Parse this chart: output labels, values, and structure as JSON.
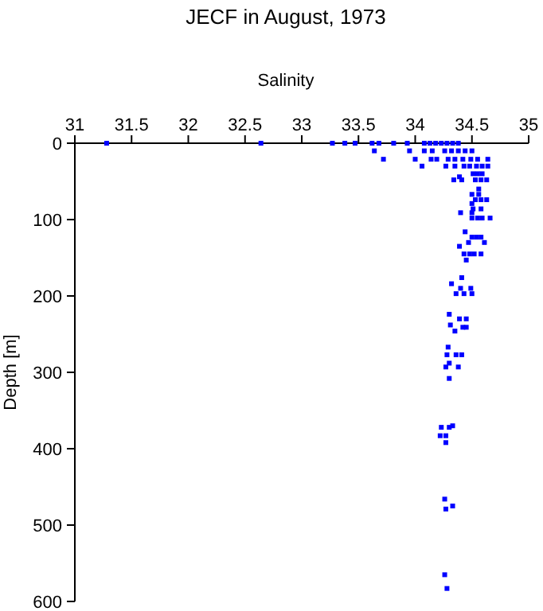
{
  "chart_data": {
    "type": "scatter",
    "title": "JECF in August, 1973",
    "xlabel": "Salinity",
    "ylabel": "Depth [m]",
    "xlim": [
      31,
      35
    ],
    "xticks": [
      31,
      31.5,
      32,
      32.5,
      33,
      33.5,
      34,
      34.5,
      35
    ],
    "ylim": [
      600,
      0
    ],
    "yticks": [
      0,
      100,
      200,
      300,
      400,
      500,
      600
    ],
    "marker": "square",
    "grid": false,
    "series": [
      {
        "color": "#0000ff",
        "x": [
          31.28,
          32.64,
          33.27,
          33.38,
          33.47,
          33.62,
          33.68,
          33.81,
          33.93,
          34.08,
          34.13,
          34.18,
          34.23,
          34.28,
          34.33,
          34.38,
          33.64,
          33.95,
          34.08,
          34.15,
          34.26,
          34.32,
          34.38,
          34.44,
          34.5,
          33.72,
          34.0,
          34.14,
          34.19,
          34.29,
          34.35,
          34.42,
          34.49,
          34.55,
          34.64,
          34.06,
          34.27,
          34.35,
          34.43,
          34.48,
          34.54,
          34.59,
          34.64,
          34.51,
          34.55,
          34.59,
          34.34,
          34.41,
          34.53,
          34.58,
          34.63,
          34.39,
          34.56,
          34.5,
          34.56,
          34.53,
          34.58,
          34.63,
          34.5,
          34.51,
          34.58,
          34.4,
          34.5,
          34.5,
          34.55,
          34.59,
          34.66,
          34.44,
          34.5,
          34.54,
          34.58,
          34.47,
          34.61,
          34.39,
          34.43,
          34.48,
          34.52,
          34.58,
          34.45,
          34.41,
          34.32,
          34.4,
          34.49,
          34.36,
          34.43,
          34.5,
          34.3,
          34.39,
          34.45,
          34.31,
          34.42,
          34.45,
          34.35,
          34.29,
          34.28,
          34.36,
          34.41,
          34.3,
          34.27,
          34.38,
          34.3,
          34.23,
          34.3,
          34.33,
          34.22,
          34.27,
          34.27,
          34.26,
          34.33,
          34.27,
          34.26,
          34.28
        ],
        "values": [
          0,
          0,
          0,
          0,
          0,
          0,
          0,
          0,
          0,
          0,
          0,
          0,
          0,
          0,
          0,
          0,
          10,
          10,
          10,
          10,
          10,
          10,
          10,
          10,
          10,
          21,
          21,
          21,
          21,
          21,
          21,
          21,
          21,
          21,
          21,
          30,
          30,
          30,
          30,
          30,
          30,
          30,
          30,
          40,
          40,
          40,
          48,
          48,
          48,
          48,
          48,
          44,
          60,
          67,
          67,
          74,
          74,
          74,
          79,
          86,
          86,
          91,
          91,
          98,
          98,
          98,
          98,
          116,
          123,
          123,
          123,
          130,
          130,
          135,
          145,
          145,
          145,
          145,
          153,
          176,
          184,
          190,
          190,
          197,
          197,
          197,
          224,
          230,
          230,
          238,
          241,
          241,
          246,
          267,
          277,
          277,
          277,
          288,
          293,
          293,
          308,
          372,
          372,
          370,
          383,
          383,
          392,
          466,
          475,
          479,
          565,
          583
        ]
      }
    ]
  }
}
